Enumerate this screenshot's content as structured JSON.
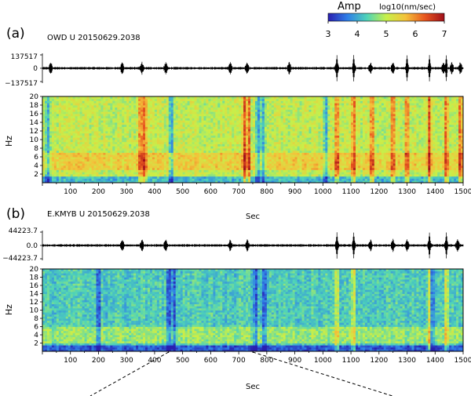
{
  "colorbar": {
    "title": "Amp",
    "unit": "log10(nm/sec)",
    "ticks": [
      "3",
      "4",
      "5",
      "6",
      "7"
    ],
    "range": [
      3,
      7
    ],
    "colors": [
      "#2a1fb0",
      "#2f7fe8",
      "#4fd3b8",
      "#c7f04a",
      "#f4c23a",
      "#e8561f",
      "#a0101a"
    ]
  },
  "chart_data": [
    {
      "type": "heatmap",
      "panel_label": "(a)",
      "station": "OWD U 20150629.2038",
      "waveform": {
        "y_ticks": [
          "137517",
          "0",
          "−137517"
        ],
        "ylim": [
          -137517,
          137517
        ],
        "strong_events_sec": [
          30,
          285,
          355,
          440,
          670,
          730,
          880,
          1050,
          1110,
          1170,
          1250,
          1300,
          1380,
          1430,
          1460,
          1490
        ],
        "peak_events_sec": [
          1050,
          1110,
          1300,
          1380,
          1440
        ]
      },
      "spectrogram": {
        "xlabel": "Sec",
        "ylabel": "Hz",
        "xlim": [
          0,
          1500
        ],
        "ylim": [
          0,
          20
        ],
        "x_ticks": [
          "100",
          "200",
          "300",
          "400",
          "500",
          "600",
          "700",
          "800",
          "900",
          "1000",
          "1100",
          "1200",
          "1300",
          "1400",
          "1500"
        ],
        "y_ticks": [
          "2",
          "4",
          "6",
          "8",
          "10",
          "12",
          "14",
          "16",
          "18",
          "20"
        ],
        "hot_columns_sec": [
          350,
          365,
          720,
          735,
          1050,
          1110,
          1175,
          1250,
          1300,
          1380,
          1440,
          1490
        ],
        "quiet_columns_sec": [
          20,
          460,
          770,
          785,
          1010
        ],
        "low_freq_band_hz": [
          3,
          7
        ]
      }
    },
    {
      "type": "heatmap",
      "panel_label": "(b)",
      "station": "E.KMYB U 20150629.2038",
      "waveform": {
        "y_ticks": [
          "44223.7",
          "0.0",
          "−44223.7"
        ],
        "ylim": [
          -44223.7,
          44223.7
        ],
        "strong_events_sec": [
          285,
          355,
          440,
          670,
          730,
          1050,
          1110,
          1170,
          1250,
          1300,
          1380,
          1440,
          1480
        ],
        "peak_events_sec": [
          1050,
          1110,
          1380,
          1440
        ]
      },
      "spectrogram": {
        "xlabel": "Sec",
        "ylabel": "Hz",
        "xlim": [
          0,
          1500
        ],
        "ylim": [
          0,
          20
        ],
        "x_ticks": [
          "100",
          "200",
          "300",
          "400",
          "500",
          "600",
          "700",
          "800",
          "900",
          "1000",
          "1100",
          "1200",
          "1300",
          "1400",
          "1500"
        ],
        "y_ticks": [
          "2",
          "4",
          "6",
          "8",
          "10",
          "12",
          "14",
          "16",
          "18",
          "20"
        ],
        "hot_columns_sec": [
          1050,
          1110,
          1380,
          1440
        ],
        "quiet_columns_sec": [
          200,
          450,
          470,
          760,
          790,
          1390
        ],
        "low_freq_band_hz": [
          2,
          6
        ]
      },
      "zoom_range_sec": [
        450,
        750
      ]
    }
  ]
}
